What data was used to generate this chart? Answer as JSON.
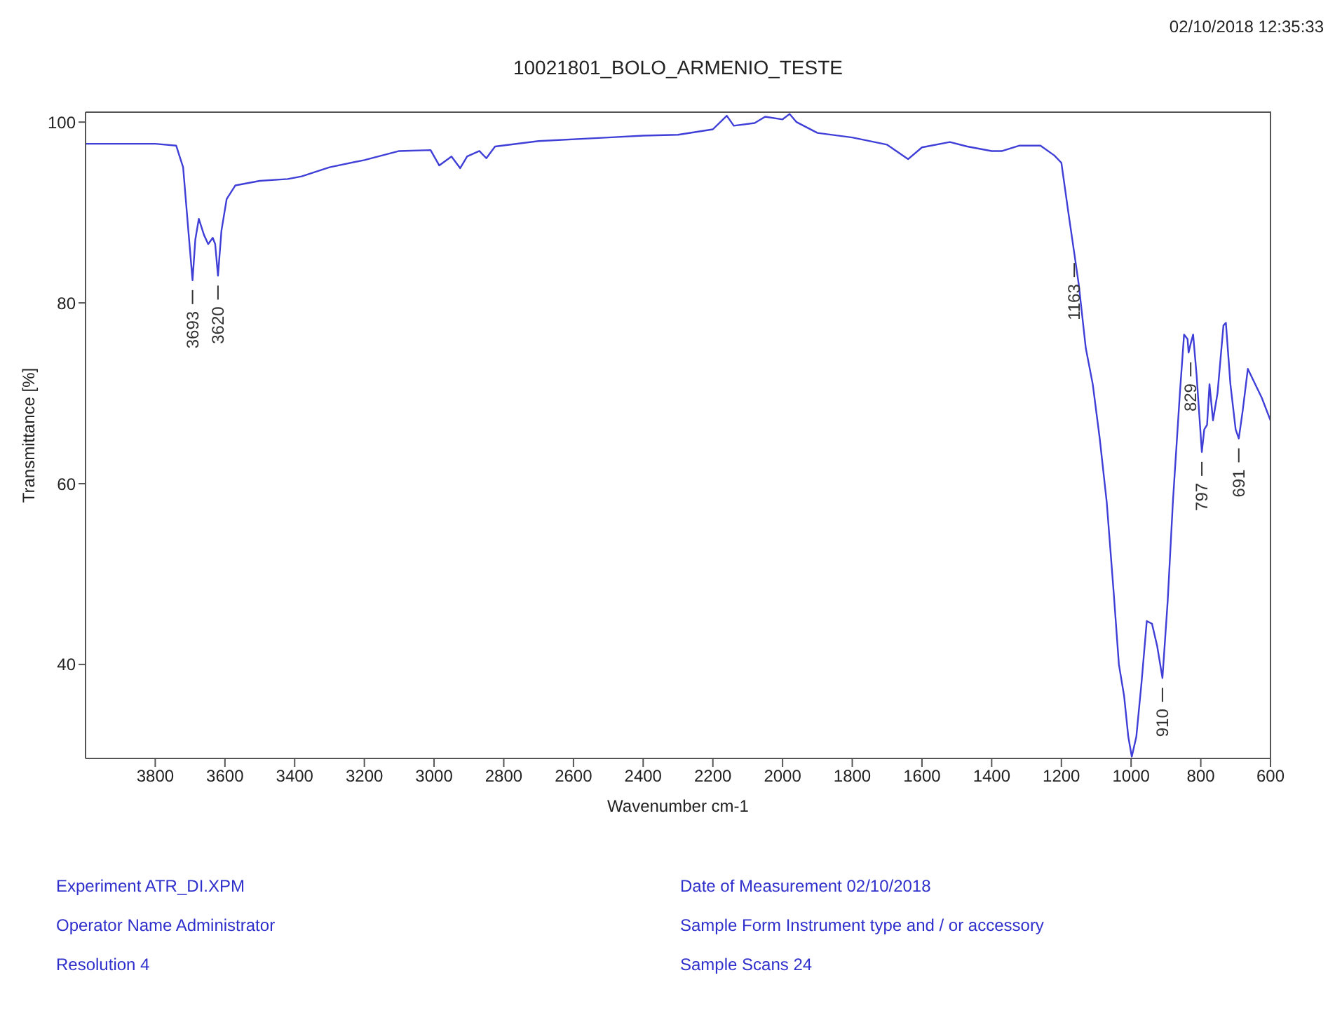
{
  "chart_data": {
    "type": "line",
    "title": "10021801_BOLO_ARMENIO_TESTE",
    "xlabel": "Wavenumber cm-1",
    "ylabel": "Transmittance [%]",
    "xlim": [
      4000,
      600
    ],
    "xticks": [
      3800,
      3600,
      3400,
      3200,
      3000,
      2800,
      2600,
      2400,
      2200,
      2000,
      1800,
      1600,
      1400,
      1200,
      1000,
      800,
      600
    ],
    "ylim": [
      29.6,
      101.1
    ],
    "yticks": [
      40,
      60,
      80,
      100
    ],
    "x": [
      4000,
      3800,
      3740,
      3720,
      3705,
      3693,
      3685,
      3675,
      3660,
      3648,
      3635,
      3628,
      3620,
      3610,
      3595,
      3570,
      3500,
      3420,
      3380,
      3300,
      3200,
      3100,
      3010,
      2985,
      2950,
      2925,
      2905,
      2870,
      2850,
      2825,
      2700,
      2500,
      2400,
      2300,
      2200,
      2160,
      2140,
      2080,
      2050,
      2000,
      1980,
      1960,
      1900,
      1800,
      1700,
      1640,
      1600,
      1520,
      1470,
      1400,
      1370,
      1320,
      1260,
      1220,
      1200,
      1180,
      1163,
      1150,
      1130,
      1110,
      1090,
      1070,
      1050,
      1035,
      1020,
      1008,
      998,
      985,
      970,
      955,
      940,
      925,
      910,
      895,
      880,
      860,
      848,
      838,
      835,
      829,
      822,
      812,
      797,
      790,
      782,
      775,
      765,
      752,
      735,
      728,
      715,
      700,
      691,
      680,
      665,
      650,
      625,
      600
    ],
    "series": [
      {
        "color": "#3f3fd8",
        "values": [
          97.6,
          97.6,
          97.4,
          95,
          88,
          82.5,
          87,
          89.3,
          87.5,
          86.5,
          87.2,
          86.5,
          83,
          88,
          91.5,
          93,
          93.5,
          93.7,
          94,
          95,
          95.8,
          96.8,
          96.9,
          95.2,
          96.2,
          94.9,
          96.2,
          96.8,
          96,
          97.3,
          97.9,
          98.3,
          98.5,
          98.6,
          99.2,
          100.7,
          99.6,
          99.9,
          100.6,
          100.3,
          100.9,
          100,
          98.8,
          98.3,
          97.5,
          95.9,
          97.2,
          97.8,
          97.3,
          96.8,
          96.8,
          97.4,
          97.4,
          96.3,
          95.5,
          90,
          85.5,
          82,
          75,
          71,
          65,
          58,
          48,
          40,
          36.5,
          32,
          29.8,
          32,
          38,
          44.8,
          44.5,
          42,
          38.5,
          47,
          58,
          70,
          76.5,
          76,
          74.5,
          75.5,
          76.5,
          72,
          63.5,
          66,
          66.5,
          71,
          67,
          70,
          77.5,
          77.8,
          71,
          66,
          65,
          68,
          72.7,
          71.5,
          69.5,
          67
        ]
      }
    ],
    "annotations": [
      {
        "text": "3693",
        "x": 3693,
        "y": 82.5
      },
      {
        "text": "3620",
        "x": 3620,
        "y": 83
      },
      {
        "text": "1163",
        "x": 1163,
        "y": 85.5
      },
      {
        "text": "910",
        "x": 910,
        "y": 38.5
      },
      {
        "text": "829",
        "x": 829,
        "y": 74.5
      },
      {
        "text": "797",
        "x": 797,
        "y": 63.5
      },
      {
        "text": "691",
        "x": 691,
        "y": 65
      },
      "02/10/2018  12:35:33",
      "Experiment ATR_DI.XPM",
      "Date of Measurement 02/10/2018",
      "Operator Name Administrator",
      "Sample Form Instrument type and / or accessory",
      "Resolution 4",
      "Sample Scans 24"
    ]
  }
}
